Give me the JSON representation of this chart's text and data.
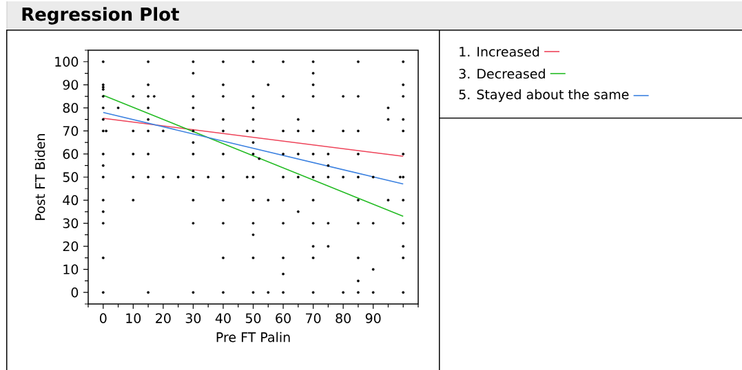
{
  "chart_data": {
    "type": "scatter",
    "title": "Regression Plot",
    "xlabel": "Pre FT Palin",
    "ylabel": "Post FT Biden",
    "xlim": [
      -5,
      105
    ],
    "ylim": [
      -5,
      105
    ],
    "xticks": [
      0,
      10,
      20,
      30,
      40,
      50,
      60,
      70,
      80,
      90
    ],
    "yticks": [
      0,
      10,
      20,
      30,
      40,
      50,
      60,
      70,
      80,
      90,
      100
    ],
    "grid": false,
    "legend": "top right",
    "series": [
      {
        "marker": "circle",
        "color": "#000000",
        "x": [
          0,
          0,
          0,
          0,
          0,
          0,
          0,
          0,
          0,
          0,
          0,
          0,
          0,
          0,
          0,
          0,
          1,
          5,
          10,
          10,
          10,
          10,
          10,
          15,
          15,
          15,
          15,
          15,
          15,
          15,
          15,
          15,
          17,
          20,
          20,
          25,
          30,
          30,
          30,
          30,
          30,
          30,
          30,
          30,
          30,
          30,
          30,
          30,
          35,
          40,
          40,
          40,
          40,
          40,
          40,
          40,
          40,
          40,
          40,
          40,
          48,
          48,
          50,
          50,
          50,
          50,
          50,
          50,
          50,
          50,
          50,
          50,
          50,
          50,
          50,
          52,
          55,
          55,
          55,
          60,
          60,
          60,
          60,
          60,
          60,
          60,
          60,
          60,
          60,
          65,
          65,
          65,
          65,
          65,
          70,
          70,
          70,
          70,
          70,
          70,
          70,
          70,
          70,
          70,
          70,
          70,
          75,
          75,
          75,
          75,
          75,
          80,
          80,
          80,
          80,
          85,
          85,
          85,
          85,
          85,
          85,
          85,
          85,
          85,
          85,
          90,
          90,
          90,
          90,
          95,
          95,
          95,
          99,
          100,
          100,
          100,
          100,
          100,
          100,
          100,
          100,
          100,
          100,
          100,
          100
        ],
        "values": [
          100,
          90,
          89,
          88,
          85,
          80,
          75,
          70,
          60,
          55,
          50,
          40,
          35,
          30,
          15,
          0,
          70,
          80,
          85,
          70,
          60,
          50,
          40,
          100,
          90,
          85,
          80,
          75,
          70,
          60,
          50,
          0,
          85,
          70,
          50,
          50,
          100,
          95,
          85,
          80,
          75,
          70,
          65,
          60,
          50,
          40,
          30,
          0,
          50,
          100,
          90,
          85,
          75,
          70,
          60,
          50,
          40,
          30,
          15,
          0,
          70,
          50,
          100,
          85,
          80,
          75,
          70,
          65,
          60,
          50,
          40,
          30,
          25,
          15,
          0,
          58,
          90,
          40,
          0,
          100,
          85,
          70,
          60,
          50,
          40,
          30,
          15,
          8,
          0,
          75,
          70,
          60,
          50,
          35,
          100,
          95,
          90,
          85,
          70,
          60,
          50,
          40,
          30,
          20,
          15,
          0,
          60,
          55,
          50,
          30,
          20,
          85,
          70,
          50,
          0,
          100,
          85,
          70,
          60,
          50,
          40,
          30,
          15,
          5,
          0,
          50,
          30,
          10,
          0,
          80,
          75,
          40,
          50,
          100,
          90,
          85,
          75,
          70,
          60,
          50,
          40,
          30,
          20,
          15,
          0
        ]
      },
      {
        "type": "line",
        "name": "1. Increased",
        "color": "#ee4258",
        "marker": "none",
        "line_style": "solid",
        "x": [
          0,
          100
        ],
        "values": [
          75.5,
          59
        ]
      },
      {
        "type": "line",
        "name": "3. Decreased",
        "color": "#22bb22",
        "marker": "none",
        "line_style": "solid",
        "x": [
          0,
          100
        ],
        "values": [
          85.5,
          33
        ]
      },
      {
        "type": "line",
        "name": "5. Stayed about the same",
        "color": "#3a80e0",
        "marker": "none",
        "line_style": "solid",
        "x": [
          0,
          100
        ],
        "values": [
          78,
          47
        ]
      }
    ]
  }
}
